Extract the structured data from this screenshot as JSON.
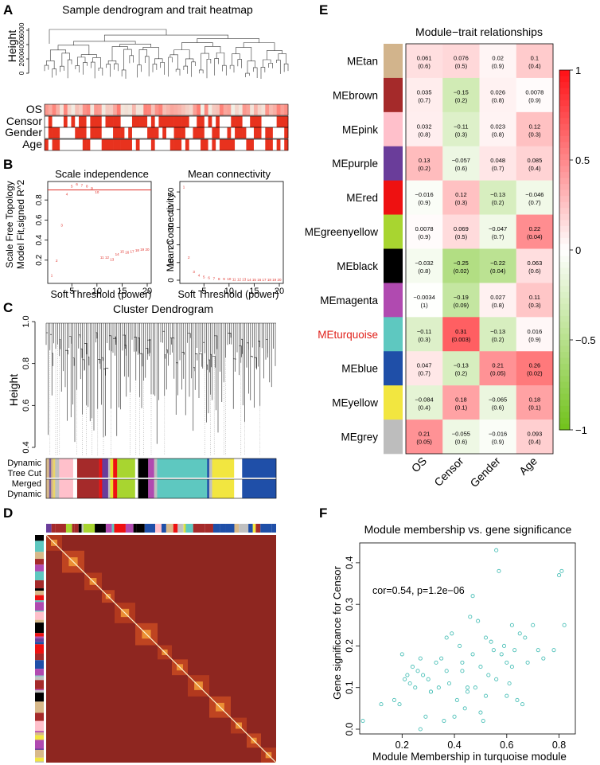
{
  "panels": {
    "A": {
      "letter": "A",
      "title": "Sample dendrogram and trait heatmap",
      "ylabel": "Height",
      "yticks": [
        "0",
        "2000",
        "4000",
        "6000"
      ],
      "traits": [
        "OS",
        "Censor",
        "Gender",
        "Age"
      ]
    },
    "B": {
      "letter": "B",
      "left": {
        "title": "Scale independence",
        "ylabel1": "Scale Free Topology",
        "ylabel2": "Model Fit,signed R^2",
        "xlabel": "Soft Threshold (power)",
        "xticks": [
          "5",
          "10",
          "15",
          "20"
        ],
        "yticks": [
          "0.2",
          "0.4",
          "0.6",
          "0.8"
        ]
      },
      "right": {
        "title": "Mean connectivity",
        "ylabel": "Mean Connectivity",
        "xlabel": "Soft Threshold (power)",
        "xticks": [
          "5",
          "10",
          "15",
          "20"
        ],
        "yticks": [
          "0",
          "10",
          "20",
          "30",
          "40",
          "50"
        ]
      }
    },
    "C": {
      "letter": "C",
      "title": "Cluster Dendrogram",
      "ylabel": "Height",
      "yticks": [
        "0.4",
        "0.6",
        "0.8",
        "1.0"
      ],
      "row1_line1": "Dynamic",
      "row1_line2": "Tree Cut",
      "row2_line1": "Merged",
      "row2_line2": "Dynamic"
    },
    "D": {
      "letter": "D"
    },
    "E": {
      "letter": "E",
      "title": "Module−trait relationships",
      "colorbar_ticks": [
        "1",
        "0.5",
        "0",
        "−0.5",
        "−1"
      ]
    },
    "F": {
      "letter": "F",
      "title": "Module membership vs. gene significance",
      "annotation": "cor=0.54, p=1.2e−06",
      "xlabel": "Module Membership in turquoise module",
      "ylabel": "Gene significance for  Censor",
      "xticks": [
        "0.2",
        "0.4",
        "0.6",
        "0.8"
      ],
      "yticks": [
        "0.0",
        "0.1",
        "0.2",
        "0.3",
        "0.4"
      ]
    }
  },
  "chart_data": [
    {
      "type": "scatter",
      "title": "Scale independence",
      "xlabel": "Soft Threshold (power)",
      "ylabel": "Scale Free Topology Model Fit,signed R^2",
      "x": [
        1,
        2,
        3,
        4,
        5,
        6,
        7,
        8,
        9,
        10,
        11,
        12,
        13,
        14,
        15,
        16,
        17,
        18,
        19,
        20
      ],
      "y": [
        0.05,
        0.2,
        0.55,
        0.86,
        0.94,
        0.96,
        0.95,
        0.94,
        0.92,
        0.88,
        0.23,
        0.23,
        0.21,
        0.26,
        0.29,
        0.28,
        0.29,
        0.3,
        0.31,
        0.31
      ],
      "point_labels": [
        "1",
        "2",
        "3",
        "4",
        "5",
        "6",
        "7",
        "8",
        "9",
        "10",
        "11",
        "12",
        "13",
        "14",
        "15",
        "16",
        "17",
        "18",
        "19",
        "20"
      ],
      "hline": 0.9,
      "xlim": [
        1,
        20
      ],
      "ylim": [
        0,
        1
      ]
    },
    {
      "type": "scatter",
      "title": "Mean connectivity",
      "xlabel": "Soft Threshold (power)",
      "ylabel": "Mean Connectivity",
      "x": [
        1,
        2,
        3,
        4,
        5,
        6,
        7,
        8,
        9,
        10,
        11,
        12,
        13,
        14,
        15,
        16,
        17,
        18,
        19,
        20
      ],
      "y": [
        53,
        13,
        5,
        3,
        2,
        1.5,
        1.2,
        1,
        0.9,
        0.8,
        0.7,
        0.6,
        0.6,
        0.5,
        0.5,
        0.5,
        0.4,
        0.4,
        0.4,
        0.4
      ],
      "xlim": [
        1,
        20
      ],
      "ylim": [
        0,
        55
      ]
    },
    {
      "type": "heatmap",
      "title": "Module−trait relationships",
      "columns": [
        "OS",
        "Censor",
        "Gender",
        "Age"
      ],
      "rows": [
        {
          "name": "MEtan",
          "color": "#d2b48c",
          "values": [
            0.061,
            0.076,
            0.02,
            0.1
          ],
          "cors": [
            "0.061",
            "0.076",
            "0.02",
            "0.1"
          ],
          "pvals": [
            "(0.6)",
            "(0.5)",
            "(0.9)",
            "(0.4)"
          ]
        },
        {
          "name": "MEbrown",
          "color": "#a52a2a",
          "values": [
            0.035,
            -0.15,
            0.026,
            0.0078
          ],
          "cors": [
            "0.035",
            "−0.15",
            "0.026",
            "0.0078"
          ],
          "pvals": [
            "(0.7)",
            "(0.2)",
            "(0.8)",
            "(0.9)"
          ]
        },
        {
          "name": "MEpink",
          "color": "#ffc0cb",
          "values": [
            0.032,
            -0.11,
            0.023,
            0.12
          ],
          "cors": [
            "0.032",
            "−0.11",
            "0.023",
            "0.12"
          ],
          "pvals": [
            "(0.8)",
            "(0.3)",
            "(0.8)",
            "(0.3)"
          ]
        },
        {
          "name": "MEpurple",
          "color": "#6a3d9a",
          "values": [
            0.13,
            -0.057,
            0.048,
            0.085
          ],
          "cors": [
            "0.13",
            "−0.057",
            "0.048",
            "0.085"
          ],
          "pvals": [
            "(0.2)",
            "(0.6)",
            "(0.7)",
            "(0.4)"
          ]
        },
        {
          "name": "MEred",
          "color": "#ee1111",
          "values": [
            -0.016,
            0.12,
            -0.13,
            -0.046
          ],
          "cors": [
            "−0.016",
            "0.12",
            "−0.13",
            "−0.046"
          ],
          "pvals": [
            "(0.9)",
            "(0.3)",
            "(0.2)",
            "(0.7)"
          ]
        },
        {
          "name": "MEgreenyellow",
          "color": "#a8d530",
          "values": [
            0.0078,
            0.069,
            -0.047,
            0.22
          ],
          "cors": [
            "0.0078",
            "0.069",
            "−0.047",
            "0.22"
          ],
          "pvals": [
            "(0.9)",
            "(0.5)",
            "(0.7)",
            "(0.04)"
          ]
        },
        {
          "name": "MEblack",
          "color": "#000000",
          "values": [
            -0.032,
            -0.25,
            -0.22,
            0.063
          ],
          "cors": [
            "−0.032",
            "−0.25",
            "−0.22",
            "0.063"
          ],
          "pvals": [
            "(0.8)",
            "(0.02)",
            "(0.04)",
            "(0.6)"
          ]
        },
        {
          "name": "MEmagenta",
          "color": "#b04ab0",
          "values": [
            -0.0034,
            -0.19,
            0.027,
            0.11
          ],
          "cors": [
            "−0.0034",
            "−0.19",
            "0.027",
            "0.11"
          ],
          "pvals": [
            "(1)",
            "(0.09)",
            "(0.8)",
            "(0.3)"
          ]
        },
        {
          "name": "MEturquoise",
          "color": "#5ec8c0",
          "values": [
            -0.11,
            0.31,
            -0.13,
            0.016
          ],
          "cors": [
            "−0.11",
            "0.31",
            "−0.13",
            "0.016"
          ],
          "pvals": [
            "(0.3)",
            "(0.003)",
            "(0.2)",
            "(0.9)"
          ],
          "highlight": true
        },
        {
          "name": "MEblue",
          "color": "#1f4fa8",
          "values": [
            0.047,
            -0.13,
            0.21,
            0.26
          ],
          "cors": [
            "0.047",
            "−0.13",
            "0.21",
            "0.26"
          ],
          "pvals": [
            "(0.7)",
            "(0.2)",
            "(0.05)",
            "(0.02)"
          ]
        },
        {
          "name": "MEyellow",
          "color": "#f2e640",
          "values": [
            -0.084,
            0.18,
            -0.065,
            0.18
          ],
          "cors": [
            "−0.084",
            "0.18",
            "−0.065",
            "0.18"
          ],
          "pvals": [
            "(0.4)",
            "(0.1)",
            "(0.6)",
            "(0.1)"
          ]
        },
        {
          "name": "MEgrey",
          "color": "#bdbdbd",
          "values": [
            0.21,
            -0.055,
            -0.016,
            0.093
          ],
          "cors": [
            "0.21",
            "−0.055",
            "−0.016",
            "0.093"
          ],
          "pvals": [
            "(0.05)",
            "(0.6)",
            "(0.9)",
            "(0.4)"
          ]
        }
      ],
      "vmin": -1,
      "vmax": 1
    },
    {
      "type": "scatter",
      "title": "Module membership vs. gene significance",
      "xlabel": "Module Membership in turquoise module",
      "ylabel": "Gene significance for  Censor",
      "xlim": [
        0.05,
        0.85
      ],
      "ylim": [
        0,
        0.44
      ],
      "x": [
        0.05,
        0.12,
        0.17,
        0.19,
        0.2,
        0.21,
        0.22,
        0.23,
        0.24,
        0.25,
        0.26,
        0.27,
        0.28,
        0.29,
        0.3,
        0.31,
        0.33,
        0.34,
        0.35,
        0.36,
        0.37,
        0.38,
        0.39,
        0.4,
        0.41,
        0.42,
        0.43,
        0.44,
        0.45,
        0.46,
        0.47,
        0.48,
        0.49,
        0.5,
        0.51,
        0.52,
        0.53,
        0.54,
        0.55,
        0.56,
        0.57,
        0.58,
        0.59,
        0.6,
        0.61,
        0.62,
        0.63,
        0.64,
        0.65,
        0.66,
        0.67,
        0.68,
        0.7,
        0.72,
        0.78,
        0.8,
        0.81,
        0.82,
        0.37,
        0.43,
        0.47,
        0.52,
        0.56,
        0.6,
        0.27,
        0.31,
        0.45,
        0.5,
        0.62,
        0.74
      ],
      "y": [
        0.02,
        0.06,
        0.07,
        0.06,
        0.18,
        0.12,
        0.13,
        0.11,
        0.15,
        0.1,
        0.14,
        0.17,
        0.13,
        0.03,
        0.12,
        0.09,
        0.16,
        0.1,
        0.17,
        0.02,
        0.14,
        0.11,
        0.23,
        0.03,
        0.07,
        0.2,
        0.16,
        0.05,
        0.09,
        0.27,
        0.18,
        0.1,
        0.26,
        0.15,
        0.02,
        0.22,
        0.13,
        0.21,
        0.19,
        0.43,
        0.38,
        0.18,
        0.2,
        0.16,
        0.11,
        0.25,
        0.19,
        0.07,
        0.23,
        0.06,
        0.22,
        0.16,
        0.25,
        0.19,
        0.19,
        0.37,
        0.38,
        0.25,
        0.22,
        0.14,
        0.32,
        0.08,
        0.12,
        0.08,
        0.0,
        0.09,
        0.1,
        0.04,
        0.15,
        0.17
      ]
    }
  ]
}
